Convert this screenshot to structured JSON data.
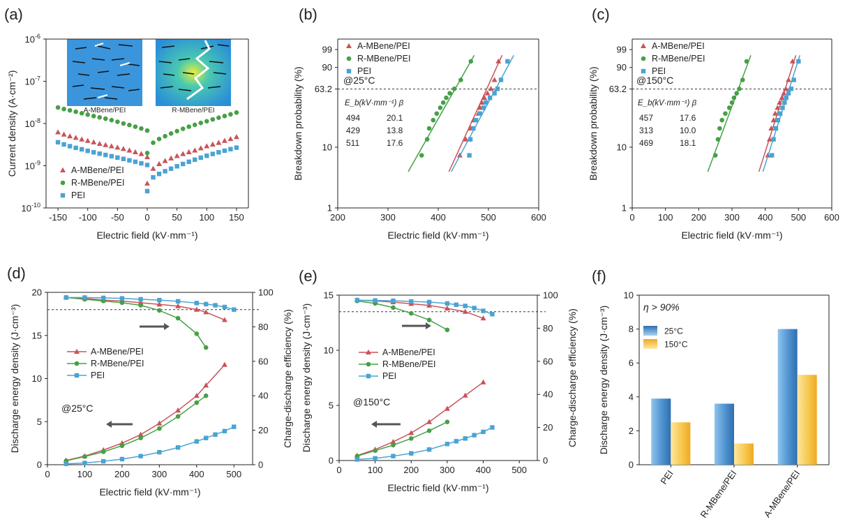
{
  "colors": {
    "a": "#c8545a",
    "r": "#46a046",
    "p": "#4aa3d2",
    "axis": "#222222",
    "blue_bar": "#5b9ed6",
    "yellow_bar": "#f5c54a"
  },
  "inset": {
    "left_label": "A-MBene/PEI",
    "right_label": "R-MBene/PEI"
  },
  "chart_data": [
    {
      "id": "a",
      "type": "scatter",
      "panel_label": "(a)",
      "xlabel": "Electric field (kV·mm⁻¹)",
      "ylabel": "Current density (A·cm⁻²)",
      "xlim": [
        -170,
        170
      ],
      "ylog": true,
      "ylim": [
        1e-10,
        1e-06
      ],
      "xticks": [
        "-150",
        "-100",
        "-50",
        "0",
        "50",
        "100",
        "150"
      ],
      "ytick_bases": [
        "10",
        "10",
        "10",
        "10",
        "10"
      ],
      "ytick_exps": [
        "-10",
        "-9",
        "-8",
        "-7",
        "-6"
      ],
      "series": [
        {
          "name": "A-MBene/PEI",
          "marker": "triangle",
          "color_key": "a",
          "x": [
            -150,
            -140,
            -130,
            -120,
            -110,
            -100,
            -90,
            -80,
            -70,
            -60,
            -50,
            -40,
            -30,
            -20,
            -10,
            0,
            0,
            10,
            20,
            30,
            40,
            50,
            60,
            70,
            80,
            90,
            100,
            110,
            120,
            130,
            140,
            150
          ],
          "y": [
            6.2e-09,
            5.5e-09,
            5e-09,
            4.6e-09,
            4.2e-09,
            3.9e-09,
            3.6e-09,
            3.3e-09,
            3.1e-09,
            2.9e-09,
            2.7e-09,
            2.5e-09,
            2.3e-09,
            2.1e-09,
            1.9e-09,
            1.6e-09,
            3.8e-10,
            8.5e-10,
            1.1e-09,
            1.3e-09,
            1.5e-09,
            1.7e-09,
            1.9e-09,
            2.1e-09,
            2.3e-09,
            2.6e-09,
            2.9e-09,
            3.2e-09,
            3.5e-09,
            3.9e-09,
            4.3e-09,
            4.8e-09
          ]
        },
        {
          "name": "R-MBene/PEI",
          "marker": "circle",
          "color_key": "r",
          "x": [
            -150,
            -140,
            -130,
            -120,
            -110,
            -100,
            -90,
            -80,
            -70,
            -60,
            -50,
            -40,
            -30,
            -20,
            -10,
            0,
            0,
            10,
            20,
            30,
            40,
            50,
            60,
            70,
            80,
            90,
            100,
            110,
            120,
            130,
            140,
            150
          ],
          "y": [
            2.4e-08,
            2.2e-08,
            2.05e-08,
            1.9e-08,
            1.75e-08,
            1.62e-08,
            1.5e-08,
            1.4e-08,
            1.3e-08,
            1.2e-08,
            1.1e-08,
            1e-08,
            9.2e-09,
            8.4e-09,
            7.6e-09,
            6.8e-09,
            2e-09,
            3.5e-09,
            4.3e-09,
            5e-09,
            5.8e-09,
            6.6e-09,
            7.5e-09,
            8.4e-09,
            9.3e-09,
            1.03e-08,
            1.13e-08,
            1.25e-08,
            1.37e-08,
            1.5e-08,
            1.65e-08,
            1.82e-08
          ]
        },
        {
          "name": "PEI",
          "marker": "square",
          "color_key": "p",
          "x": [
            -150,
            -140,
            -130,
            -120,
            -110,
            -100,
            -90,
            -80,
            -70,
            -60,
            -50,
            -40,
            -30,
            -20,
            -10,
            0,
            0,
            10,
            20,
            30,
            40,
            50,
            60,
            70,
            80,
            90,
            100,
            110,
            120,
            130,
            140,
            150
          ],
          "y": [
            3.6e-09,
            3.2e-09,
            2.9e-09,
            2.65e-09,
            2.45e-09,
            2.25e-09,
            2.08e-09,
            1.93e-09,
            1.8e-09,
            1.68e-09,
            1.56e-09,
            1.45e-09,
            1.34e-09,
            1.24e-09,
            1.14e-09,
            1.04e-09,
            2.5e-10,
            5.3e-10,
            6.4e-10,
            7.4e-10,
            8.5e-10,
            9.7e-10,
            1.1e-09,
            1.24e-09,
            1.39e-09,
            1.55e-09,
            1.72e-09,
            1.9e-09,
            2.08e-09,
            2.27e-09,
            2.47e-09,
            2.68e-09
          ]
        }
      ]
    },
    {
      "id": "b",
      "type": "scatter",
      "panel_label": "(b)",
      "condition": "@25°C",
      "xlabel": "Electric field (kV·mm⁻¹)",
      "ylabel": "Breakdown probability (%)",
      "xlim": [
        200,
        600
      ],
      "xticks": [
        "200",
        "300",
        "400",
        "500",
        "600"
      ],
      "yticks": [
        "1",
        "10",
        "63.2",
        "90",
        "99"
      ],
      "ytick_values": [
        1,
        10,
        63.2,
        90,
        99
      ],
      "reference_line": 63.2,
      "table_header": "E_b(kV·mm⁻¹)   β",
      "table_rows": [
        {
          "eb": "494",
          "beta": "20.1",
          "color_key": "a"
        },
        {
          "eb": "429",
          "beta": "13.8",
          "color_key": "r"
        },
        {
          "eb": "511",
          "beta": "17.6",
          "color_key": "p"
        }
      ],
      "series": [
        {
          "name": "A-MBene/PEI",
          "marker": "triangle",
          "color_key": "a",
          "eb": 494,
          "beta": 20.1,
          "x": [
            443,
            455,
            465,
            470,
            480,
            483,
            487,
            492,
            498,
            505,
            512,
            520
          ],
          "y": [
            7.4,
            13.3,
            19.6,
            25.9,
            32.1,
            38.4,
            44.7,
            50.9,
            57.2,
            63.5,
            75.9,
            94.6
          ]
        },
        {
          "name": "R-MBene/PEI",
          "marker": "circle",
          "color_key": "r",
          "eb": 429,
          "beta": 13.8,
          "x": [
            367,
            378,
            382,
            390,
            397,
            404,
            410,
            416,
            423,
            432,
            445,
            465
          ],
          "y": [
            7.4,
            13.3,
            19.6,
            25.9,
            32.1,
            38.4,
            44.7,
            50.9,
            57.2,
            63.5,
            75.9,
            94.6
          ]
        },
        {
          "name": "PEI",
          "marker": "square",
          "color_key": "p",
          "eb": 511,
          "beta": 17.6,
          "x": [
            462,
            464,
            470,
            475,
            483,
            490,
            495,
            503,
            512,
            518,
            525,
            538
          ],
          "y": [
            7.4,
            13.3,
            19.6,
            25.9,
            32.1,
            38.4,
            44.7,
            50.9,
            57.2,
            63.5,
            75.9,
            94.6
          ]
        }
      ]
    },
    {
      "id": "c",
      "type": "scatter",
      "panel_label": "(c)",
      "condition": "@150°C",
      "xlabel": "Electric field (kV·mm⁻¹)",
      "ylabel": "Breakdown probability (%)",
      "xlim": [
        0,
        600
      ],
      "xticks": [
        "0",
        "100",
        "200",
        "300",
        "400",
        "500",
        "600"
      ],
      "yticks": [
        "1",
        "10",
        "63.2",
        "90",
        "99"
      ],
      "ytick_values": [
        1,
        10,
        63.2,
        90,
        99
      ],
      "reference_line": 63.2,
      "table_header": "E_b(kV·mm⁻¹)   β",
      "table_rows": [
        {
          "eb": "457",
          "beta": "17.6",
          "color_key": "a"
        },
        {
          "eb": "313",
          "beta": "10.0",
          "color_key": "r"
        },
        {
          "eb": "469",
          "beta": "18.1",
          "color_key": "p"
        }
      ],
      "series": [
        {
          "name": "A-MBene/PEI",
          "marker": "triangle",
          "color_key": "a",
          "eb": 457,
          "beta": 17.6,
          "x": [
            408,
            413,
            418,
            425,
            430,
            437,
            443,
            450,
            456,
            462,
            470,
            482
          ],
          "y": [
            7.4,
            13.3,
            19.6,
            25.9,
            32.1,
            38.4,
            44.7,
            50.9,
            57.2,
            63.5,
            75.9,
            94.6
          ]
        },
        {
          "name": "R-MBene/PEI",
          "marker": "circle",
          "color_key": "r",
          "eb": 313,
          "beta": 10.0,
          "x": [
            250,
            258,
            263,
            270,
            280,
            292,
            300,
            306,
            314,
            322,
            332,
            344
          ],
          "y": [
            7.4,
            13.3,
            19.6,
            25.9,
            32.1,
            38.4,
            44.7,
            50.9,
            57.2,
            63.5,
            75.9,
            94.6
          ]
        },
        {
          "name": "PEI",
          "marker": "square",
          "color_key": "p",
          "eb": 469,
          "beta": 18.1,
          "x": [
            420,
            425,
            432,
            438,
            445,
            452,
            458,
            463,
            470,
            478,
            486,
            500
          ],
          "y": [
            7.4,
            13.3,
            19.6,
            25.9,
            32.1,
            38.4,
            44.7,
            50.9,
            57.2,
            63.5,
            75.9,
            94.6
          ]
        }
      ]
    },
    {
      "id": "d",
      "type": "line",
      "panel_label": "(d)",
      "condition": "@25°C",
      "xlabel": "Electric field (kV·mm⁻¹)",
      "ylabel": "Discharge energy density (J·cm⁻³)",
      "ylabel_right": "Charge-discharge efficiency (%)",
      "xlim": [
        0,
        550
      ],
      "ylim": [
        0,
        20
      ],
      "ylim_right": [
        0,
        100
      ],
      "xticks": [
        "0",
        "100",
        "200",
        "300",
        "400",
        "500"
      ],
      "yticks": [
        "0",
        "5",
        "10",
        "15",
        "20"
      ],
      "yticks_right": [
        "0",
        "20",
        "40",
        "60",
        "80",
        "100"
      ],
      "reference_line_right": 90,
      "series": [
        {
          "name": "A-MBene/PEI",
          "marker": "triangle",
          "color_key": "a",
          "axis": "left",
          "x": [
            50,
            100,
            150,
            200,
            250,
            300,
            350,
            400,
            425,
            475
          ],
          "y": [
            0.5,
            1.0,
            1.7,
            2.5,
            3.5,
            4.8,
            6.3,
            8.0,
            9.2,
            11.6
          ]
        },
        {
          "name": "R-MBene/PEI",
          "marker": "circle",
          "color_key": "r",
          "axis": "left",
          "x": [
            50,
            100,
            150,
            200,
            250,
            300,
            350,
            400,
            425
          ],
          "y": [
            0.45,
            0.95,
            1.5,
            2.2,
            3.1,
            4.2,
            5.6,
            7.2,
            8.0
          ]
        },
        {
          "name": "PEI",
          "marker": "square",
          "color_key": "p",
          "axis": "left",
          "x": [
            50,
            100,
            150,
            200,
            250,
            300,
            350,
            400,
            425,
            450,
            475,
            500
          ],
          "y": [
            0.1,
            0.2,
            0.4,
            0.65,
            1.0,
            1.45,
            2.0,
            2.7,
            3.1,
            3.5,
            3.9,
            4.4
          ]
        },
        {
          "name": "A-MBene/PEI efficiency",
          "marker": "triangle",
          "color_key": "a",
          "axis": "right",
          "legend": false,
          "x": [
            50,
            100,
            150,
            200,
            250,
            300,
            350,
            400,
            425,
            475
          ],
          "y": [
            97.0,
            96.5,
            95.5,
            95.0,
            94.0,
            93.0,
            92.0,
            90.0,
            88.5,
            84.0
          ]
        },
        {
          "name": "R-MBene/PEI efficiency",
          "marker": "circle",
          "color_key": "r",
          "axis": "right",
          "legend": false,
          "x": [
            50,
            100,
            150,
            200,
            250,
            300,
            350,
            400,
            425
          ],
          "y": [
            97.0,
            96.0,
            95.0,
            94.0,
            92.5,
            89.5,
            85.0,
            76.0,
            68.0
          ]
        },
        {
          "name": "PEI efficiency",
          "marker": "square",
          "color_key": "p",
          "axis": "right",
          "legend": false,
          "x": [
            50,
            100,
            150,
            200,
            250,
            300,
            350,
            400,
            425,
            450,
            475,
            500
          ],
          "y": [
            97.0,
            97.0,
            96.8,
            96.5,
            96.0,
            95.5,
            94.8,
            93.8,
            93.2,
            92.5,
            91.5,
            90.0
          ]
        }
      ]
    },
    {
      "id": "e",
      "type": "line",
      "panel_label": "(e)",
      "condition": "@150°C",
      "xlabel": "Electric field (kV·mm⁻¹)",
      "ylabel": "Discharge energy density (J·cm⁻³)",
      "ylabel_right": "Charge-discharge efficiency (%)",
      "xlim": [
        0,
        550
      ],
      "ylim": [
        0,
        15
      ],
      "ylim_right": [
        0,
        100
      ],
      "xticks": [
        "0",
        "100",
        "200",
        "300",
        "400",
        "500"
      ],
      "yticks": [
        "0",
        "5",
        "10",
        "15"
      ],
      "yticks_right": [
        "0",
        "20",
        "40",
        "60",
        "80",
        "100"
      ],
      "reference_line_right": 90,
      "series": [
        {
          "name": "A-MBene/PEI",
          "marker": "triangle",
          "color_key": "a",
          "axis": "left",
          "x": [
            50,
            100,
            150,
            200,
            250,
            300,
            350,
            400
          ],
          "y": [
            0.45,
            1.0,
            1.7,
            2.5,
            3.5,
            4.7,
            5.9,
            7.1
          ]
        },
        {
          "name": "R-MBene/PEI",
          "marker": "circle",
          "color_key": "r",
          "axis": "left",
          "x": [
            50,
            100,
            150,
            200,
            250,
            300
          ],
          "y": [
            0.4,
            0.9,
            1.4,
            2.0,
            2.7,
            3.5
          ]
        },
        {
          "name": "PEI",
          "marker": "square",
          "color_key": "p",
          "axis": "left",
          "x": [
            50,
            100,
            150,
            200,
            250,
            300,
            325,
            350,
            375,
            400,
            425
          ],
          "y": [
            0.1,
            0.2,
            0.4,
            0.65,
            1.0,
            1.5,
            1.75,
            2.0,
            2.3,
            2.6,
            3.0
          ]
        },
        {
          "name": "A-MBene/PEI efficiency",
          "marker": "triangle",
          "color_key": "a",
          "axis": "right",
          "legend": false,
          "x": [
            50,
            100,
            150,
            200,
            250,
            300,
            350,
            400
          ],
          "y": [
            97.0,
            96.5,
            95.8,
            94.8,
            93.8,
            92.0,
            90.0,
            86.0
          ]
        },
        {
          "name": "R-MBene/PEI efficiency",
          "marker": "circle",
          "color_key": "r",
          "axis": "right",
          "legend": false,
          "x": [
            50,
            100,
            150,
            200,
            250,
            300
          ],
          "y": [
            96.5,
            95.0,
            92.5,
            89.0,
            85.0,
            79.0
          ]
        },
        {
          "name": "PEI efficiency",
          "marker": "square",
          "color_key": "p",
          "axis": "right",
          "legend": false,
          "x": [
            50,
            100,
            150,
            200,
            250,
            300,
            325,
            350,
            375,
            400,
            425
          ],
          "y": [
            97.0,
            96.8,
            96.6,
            96.2,
            95.8,
            95.0,
            94.2,
            93.5,
            92.2,
            90.5,
            88.5
          ]
        }
      ]
    },
    {
      "id": "f",
      "type": "bar",
      "panel_label": "(f)",
      "annotation": "η > 90%",
      "ylabel": "Discharge energy density (J·cm⁻³)",
      "ylim": [
        0,
        10
      ],
      "yticks": [
        "0",
        "2",
        "4",
        "6",
        "8",
        "10"
      ],
      "categories": [
        "PEI",
        "R-MBene/PEI",
        "A-MBene/PEI"
      ],
      "series": [
        {
          "name": "25°C",
          "color_key": "blue_bar",
          "values": [
            3.9,
            3.6,
            8.0
          ]
        },
        {
          "name": "150°C",
          "color_key": "yellow_bar",
          "values": [
            2.5,
            1.25,
            5.3
          ]
        }
      ]
    }
  ]
}
